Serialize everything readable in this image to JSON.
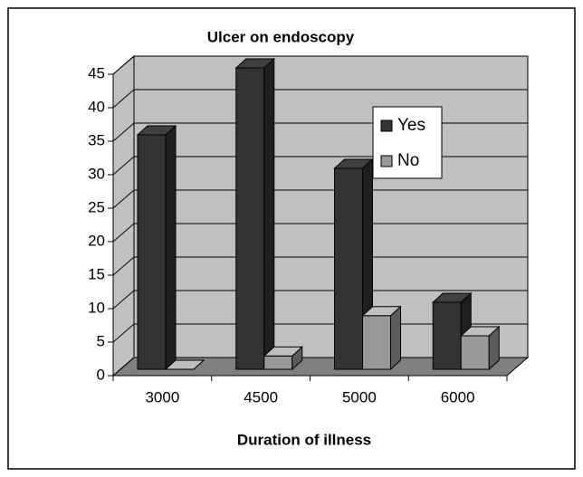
{
  "chart_data": {
    "type": "bar3d",
    "title": "Ulcer on endoscopy",
    "x_label": "Duration of illness",
    "categories": [
      "3000",
      "4500",
      "5000",
      "6000"
    ],
    "series": [
      {
        "name": "Yes",
        "color": "#333333",
        "values": [
          35,
          45,
          30,
          10
        ]
      },
      {
        "name": "No",
        "color": "#999999",
        "values": [
          0,
          2,
          8,
          5
        ]
      }
    ],
    "ylim": [
      0,
      45
    ],
    "yticks": [
      0,
      5,
      10,
      15,
      20,
      25,
      30,
      35,
      40,
      45
    ],
    "grid": true,
    "legend": "right"
  }
}
